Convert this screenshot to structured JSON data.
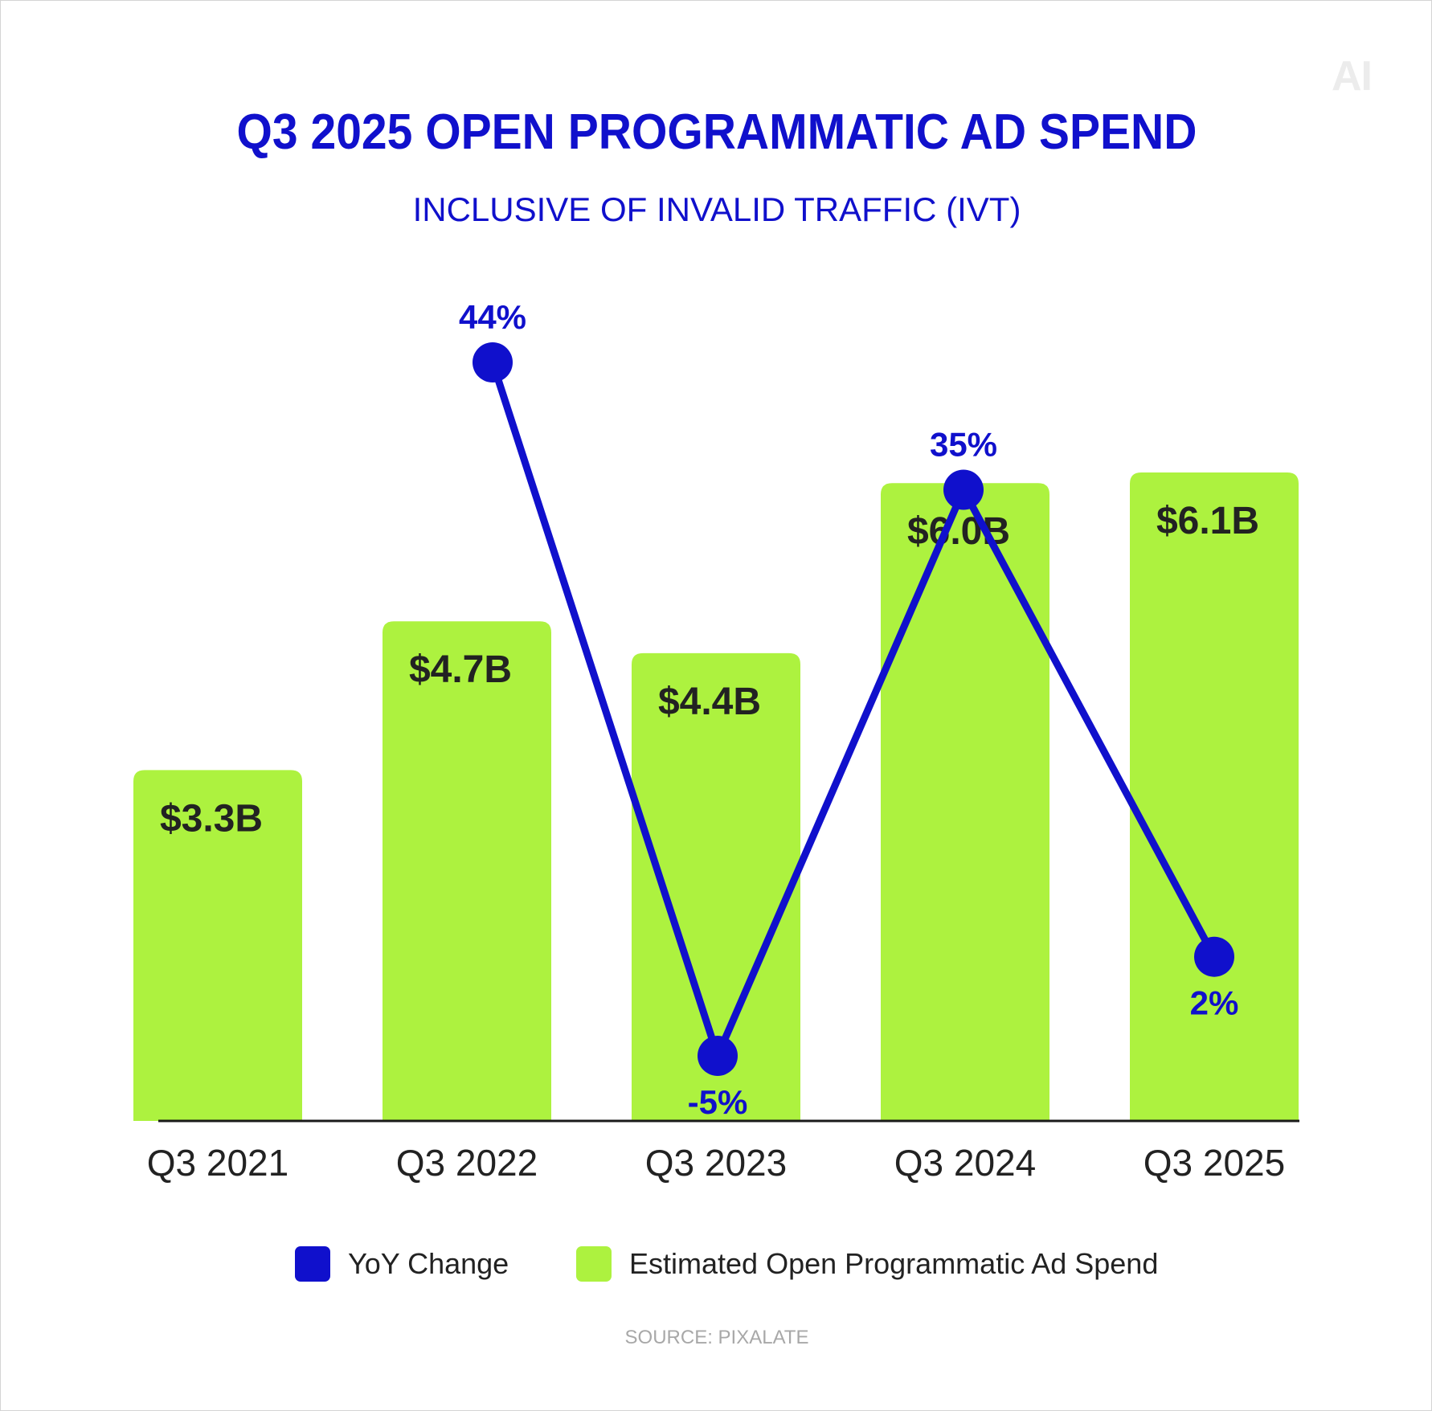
{
  "logo_text": "AI",
  "title": "Q3 2025 OPEN PROGRAMMATIC AD SPEND",
  "subtitle": "INCLUSIVE OF INVALID TRAFFIC (IVT)",
  "source": "SOURCE: PIXALATE",
  "colors": {
    "bar": "#adf23f",
    "line": "#1010cc",
    "text_dark": "#222222",
    "axis": "#1a1a1a"
  },
  "chart_data": {
    "type": "bar",
    "categories": [
      "Q3 2021",
      "Q3 2022",
      "Q3 2023",
      "Q3 2024",
      "Q3 2025"
    ],
    "series": [
      {
        "name": "Estimated Open Programmatic Ad Spend",
        "type": "bar",
        "values": [
          3.3,
          4.7,
          4.4,
          6.0,
          6.1
        ],
        "labels": [
          "$3.3B",
          "$4.7B",
          "$4.4B",
          "$6.0B",
          "$6.1B"
        ]
      },
      {
        "name": "YoY Change",
        "type": "line",
        "values": [
          null,
          44,
          -5,
          35,
          2
        ],
        "labels": [
          "",
          "44%",
          "-5%",
          "35%",
          "2%"
        ]
      }
    ],
    "legend": [
      "YoY Change",
      "Estimated Open Programmatic Ad Spend"
    ],
    "legend_position": "bottom",
    "grid": false
  }
}
